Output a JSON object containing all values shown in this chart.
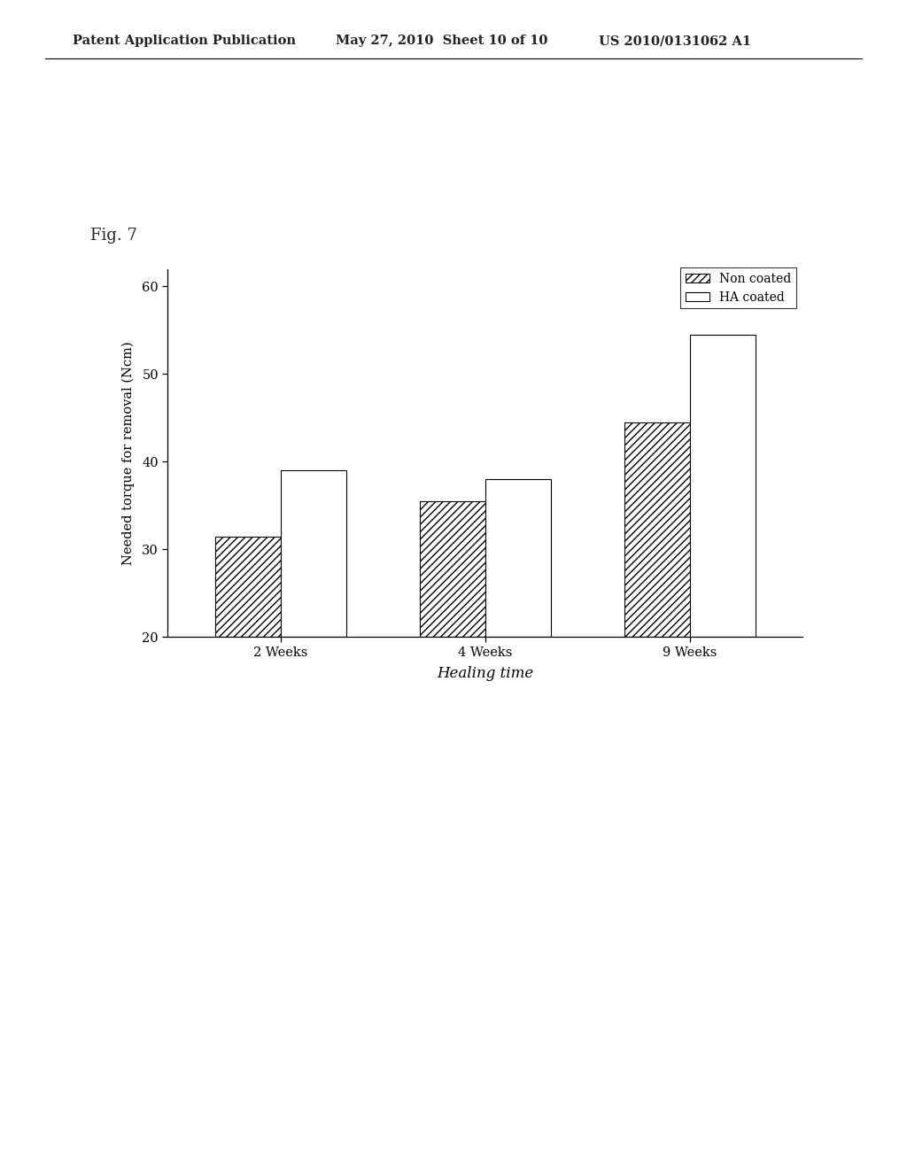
{
  "categories": [
    "2 Weeks",
    "4 Weeks",
    "9 Weeks"
  ],
  "non_coated": [
    31.5,
    35.5,
    44.5
  ],
  "ha_coated": [
    39.0,
    38.0,
    54.5
  ],
  "ylabel": "Needed torque for removal (Ncm)",
  "xlabel": "Healing time",
  "ylim": [
    20,
    62
  ],
  "yticks": [
    20,
    30,
    40,
    50,
    60
  ],
  "legend_labels": [
    "Non coated",
    "HA coated"
  ],
  "fig_label": "Fig. 7",
  "header_left": "Patent Application Publication",
  "header_mid": "May 27, 2010  Sheet 10 of 10",
  "header_right": "US 2010/0131062 A1",
  "background_color": "#ffffff",
  "bar_width": 0.32
}
